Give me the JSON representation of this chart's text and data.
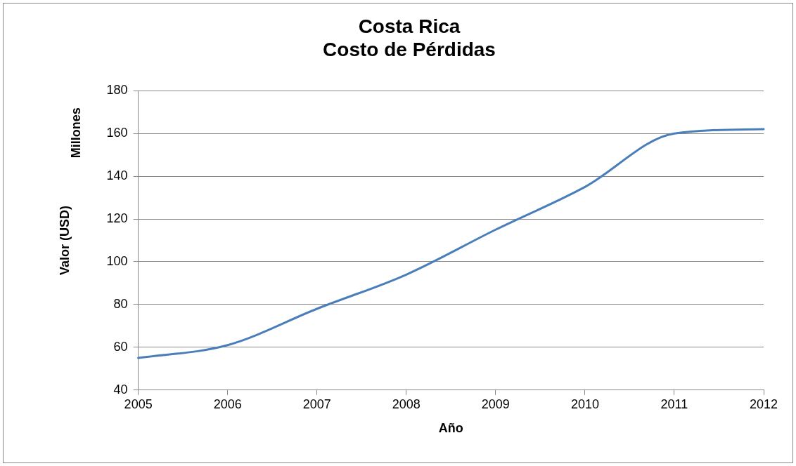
{
  "chart_data": {
    "type": "line",
    "title": "Costa Rica\nCosto de Pérdidas",
    "xlabel": "Año",
    "ylabel": "Valor (USD)",
    "annotations": [
      "Millones"
    ],
    "x": [
      2005,
      2006,
      2007,
      2008,
      2009,
      2010,
      2011,
      2012
    ],
    "series": [
      {
        "color": "#4a7ebb",
        "values": [
          55,
          61,
          78,
          94,
          115,
          135,
          160,
          162
        ]
      }
    ],
    "xlim": [
      2005,
      2012
    ],
    "xticks": [
      2005,
      2006,
      2007,
      2008,
      2009,
      2010,
      2011,
      2012
    ],
    "ylim": [
      40,
      180
    ],
    "yticks": [
      40,
      60,
      80,
      100,
      120,
      140,
      160,
      180
    ],
    "grid": "y",
    "legend": false,
    "marker": "none",
    "line_style": "solid"
  }
}
